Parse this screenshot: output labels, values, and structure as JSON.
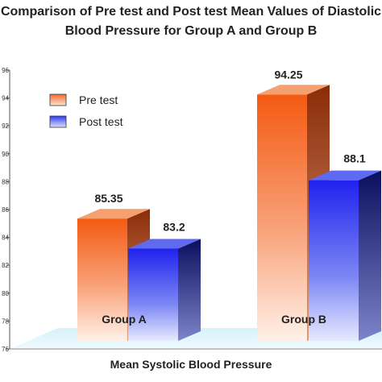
{
  "chart_data": {
    "type": "bar",
    "title": "Comparison of Pre test and Post test Mean Values of Diastolic Blood Pressure for Group A and Group B",
    "title_lines": [
      "Comparison of Pre test and Post test Mean Values of Diastolic",
      "Blood Pressure for Group A and Group B"
    ],
    "xlabel": "Mean Systolic Blood Pressure",
    "ylabel": "",
    "categories": [
      "Group A",
      "Group B"
    ],
    "series": [
      {
        "name": "Pre test",
        "values": [
          85.35,
          94.25
        ],
        "color": "#f26a2a"
      },
      {
        "name": "Post test",
        "values": [
          83.2,
          88.1
        ],
        "color": "#2f3cf0"
      }
    ],
    "value_labels": [
      [
        "85.35",
        "94.25"
      ],
      [
        "83.2",
        "88.1"
      ]
    ],
    "ylim": [
      76,
      96
    ],
    "yticks": [
      76,
      78,
      80,
      82,
      84,
      86,
      88,
      90,
      92,
      94,
      96
    ],
    "grid": false,
    "legend_position": "top-left",
    "style": "3d"
  }
}
